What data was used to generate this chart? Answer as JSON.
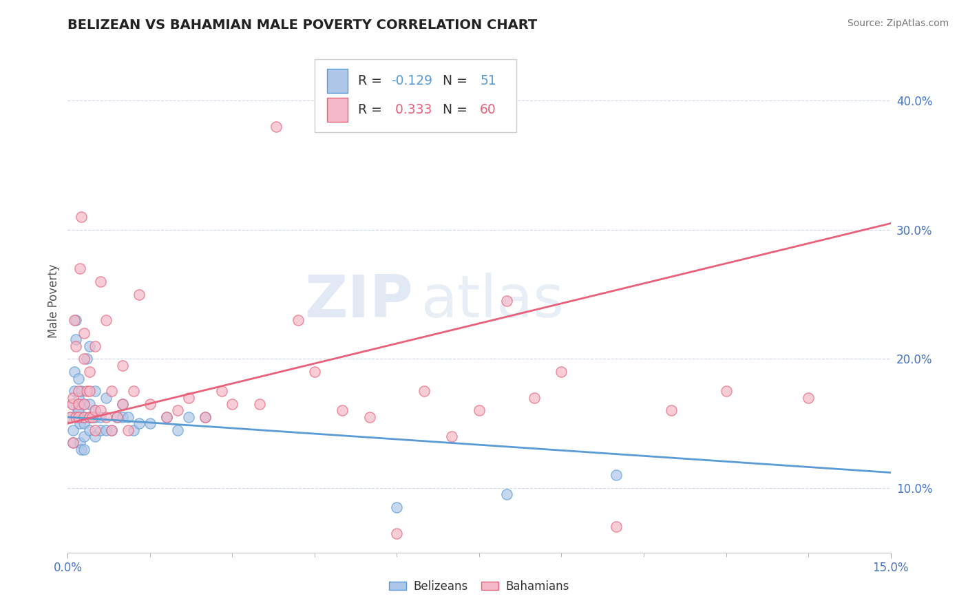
{
  "title": "BELIZEAN VS BAHAMIAN MALE POVERTY CORRELATION CHART",
  "source": "Source: ZipAtlas.com",
  "ylabel": "Male Poverty",
  "belizean_R": -0.129,
  "belizean_N": 51,
  "bahamian_R": 0.333,
  "bahamian_N": 60,
  "belizean_color": "#aec6e8",
  "bahamian_color": "#f4b8c8",
  "belizean_line_color": "#5b9bd5",
  "bahamian_line_color": "#e8607a",
  "background_color": "#ffffff",
  "grid_color": "#c8d4e8",
  "watermark_zip": "ZIP",
  "watermark_atlas": "atlas",
  "xlim": [
    0.0,
    0.15
  ],
  "ylim": [
    0.05,
    0.44
  ],
  "ytick_positions": [
    0.1,
    0.2,
    0.3,
    0.4
  ],
  "ytick_labels": [
    "10.0%",
    "20.0%",
    "30.0%",
    "40.0%"
  ],
  "belizean_x": [
    0.0005,
    0.0008,
    0.001,
    0.001,
    0.0012,
    0.0012,
    0.0015,
    0.0015,
    0.0018,
    0.002,
    0.002,
    0.002,
    0.002,
    0.0022,
    0.0022,
    0.0025,
    0.0025,
    0.003,
    0.003,
    0.003,
    0.003,
    0.003,
    0.0035,
    0.004,
    0.004,
    0.004,
    0.004,
    0.0045,
    0.005,
    0.005,
    0.005,
    0.005,
    0.006,
    0.006,
    0.007,
    0.007,
    0.008,
    0.009,
    0.01,
    0.01,
    0.011,
    0.012,
    0.013,
    0.015,
    0.018,
    0.02,
    0.022,
    0.025,
    0.06,
    0.08,
    0.1
  ],
  "belizean_y": [
    0.155,
    0.165,
    0.135,
    0.145,
    0.175,
    0.19,
    0.215,
    0.23,
    0.16,
    0.155,
    0.16,
    0.17,
    0.185,
    0.135,
    0.15,
    0.13,
    0.175,
    0.13,
    0.14,
    0.15,
    0.155,
    0.165,
    0.2,
    0.145,
    0.155,
    0.165,
    0.21,
    0.155,
    0.14,
    0.155,
    0.16,
    0.175,
    0.145,
    0.155,
    0.145,
    0.17,
    0.145,
    0.155,
    0.155,
    0.165,
    0.155,
    0.145,
    0.15,
    0.15,
    0.155,
    0.145,
    0.155,
    0.155,
    0.085,
    0.095,
    0.11
  ],
  "bahamian_x": [
    0.0005,
    0.0008,
    0.001,
    0.001,
    0.0012,
    0.0015,
    0.0015,
    0.002,
    0.002,
    0.002,
    0.0022,
    0.0025,
    0.003,
    0.003,
    0.003,
    0.003,
    0.0035,
    0.004,
    0.004,
    0.004,
    0.0045,
    0.005,
    0.005,
    0.005,
    0.006,
    0.006,
    0.007,
    0.007,
    0.008,
    0.008,
    0.009,
    0.01,
    0.01,
    0.011,
    0.012,
    0.013,
    0.015,
    0.018,
    0.02,
    0.022,
    0.025,
    0.028,
    0.03,
    0.035,
    0.038,
    0.042,
    0.045,
    0.05,
    0.055,
    0.06,
    0.065,
    0.07,
    0.075,
    0.08,
    0.085,
    0.09,
    0.1,
    0.11,
    0.12,
    0.135
  ],
  "bahamian_y": [
    0.155,
    0.165,
    0.135,
    0.17,
    0.23,
    0.155,
    0.21,
    0.155,
    0.165,
    0.175,
    0.27,
    0.31,
    0.155,
    0.165,
    0.2,
    0.22,
    0.175,
    0.155,
    0.175,
    0.19,
    0.155,
    0.145,
    0.16,
    0.21,
    0.16,
    0.26,
    0.155,
    0.23,
    0.145,
    0.175,
    0.155,
    0.165,
    0.195,
    0.145,
    0.175,
    0.25,
    0.165,
    0.155,
    0.16,
    0.17,
    0.155,
    0.175,
    0.165,
    0.165,
    0.38,
    0.23,
    0.19,
    0.16,
    0.155,
    0.065,
    0.175,
    0.14,
    0.16,
    0.245,
    0.17,
    0.19,
    0.07,
    0.16,
    0.175,
    0.17
  ]
}
